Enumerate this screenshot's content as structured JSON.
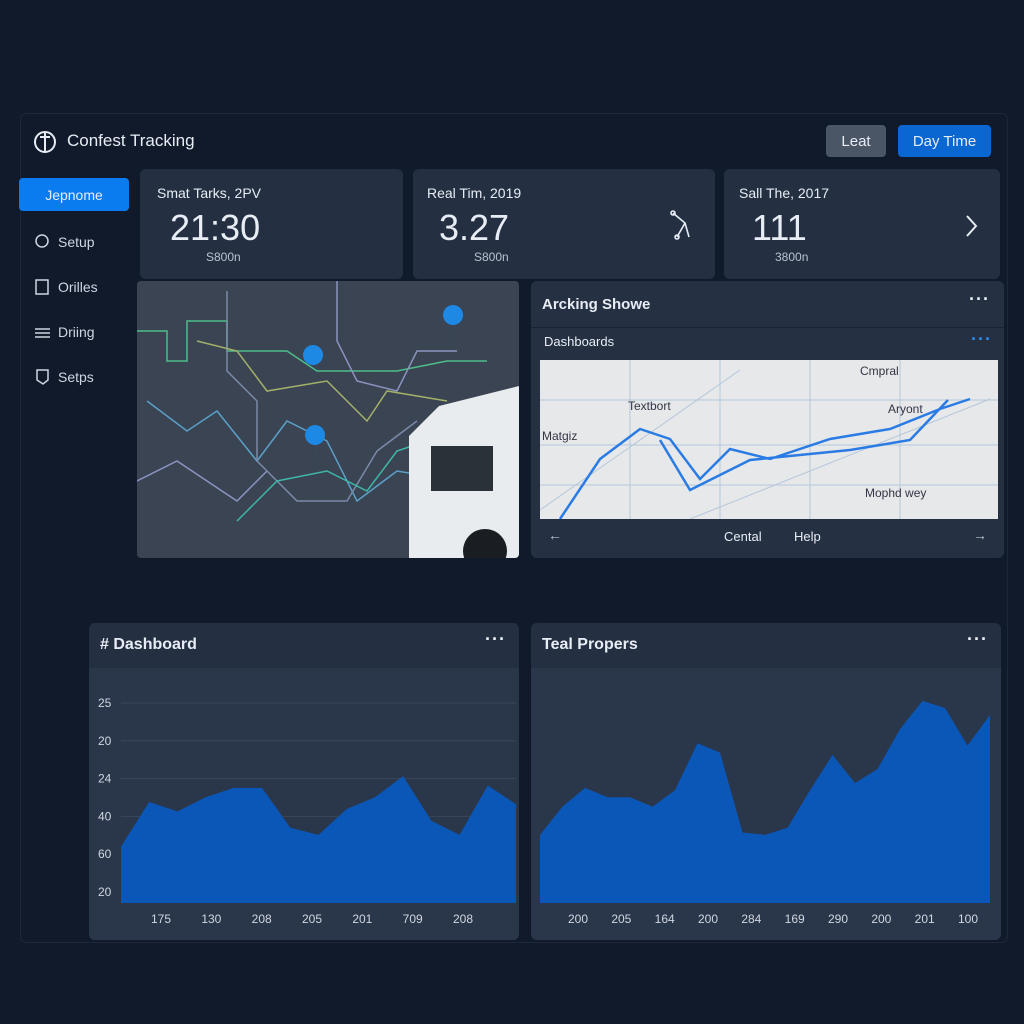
{
  "header": {
    "title": "Confest Tracking",
    "buttons": [
      "Leat",
      "Day Time"
    ]
  },
  "sidebar": {
    "items": [
      "Jepnome",
      "Setup",
      "Orilles",
      "Driing",
      "Setps"
    ]
  },
  "stats": [
    {
      "label": "Smat Tarks, 2PV",
      "value": "21:30",
      "sub": "S800n"
    },
    {
      "label": "Real Tim, 2019",
      "value": "3.27",
      "sub": "S800n"
    },
    {
      "label": "Sall The, 2017",
      "value": "111",
      "sub": "3800n"
    }
  ],
  "tracking": {
    "title": "Arcking Showe",
    "subtitle": "Dashboards",
    "map_labels": [
      "Cmpral",
      "Textbort",
      "Aryont",
      "Matgiz",
      "Mophd wey"
    ],
    "footer": [
      "←",
      "Cental",
      "Help",
      "→"
    ]
  },
  "charts": [
    {
      "type": "area",
      "title": "# Dashboard",
      "y_labels": [
        "25",
        "20",
        "24",
        "40",
        "60",
        "20"
      ],
      "x_labels": [
        "175",
        "130",
        "208",
        "205",
        "201",
        "709",
        "208"
      ],
      "ylim": [
        0,
        100
      ],
      "color": "#0b57b8",
      "values": [
        24,
        43,
        39,
        45,
        49,
        49,
        32,
        29,
        40,
        45,
        54,
        35,
        29,
        50,
        42
      ]
    },
    {
      "type": "area",
      "title": "Teal Propers",
      "y_labels": [],
      "x_labels": [
        "200",
        "205",
        "164",
        "200",
        "284",
        "169",
        "290",
        "200",
        "201",
        "100"
      ],
      "ylim": [
        0,
        100
      ],
      "color": "#0b57b8",
      "values": [
        29,
        41,
        49,
        45,
        45,
        41,
        48,
        68,
        64,
        30,
        29,
        32,
        48,
        63,
        51,
        57,
        74,
        86,
        83,
        67,
        80
      ]
    }
  ]
}
